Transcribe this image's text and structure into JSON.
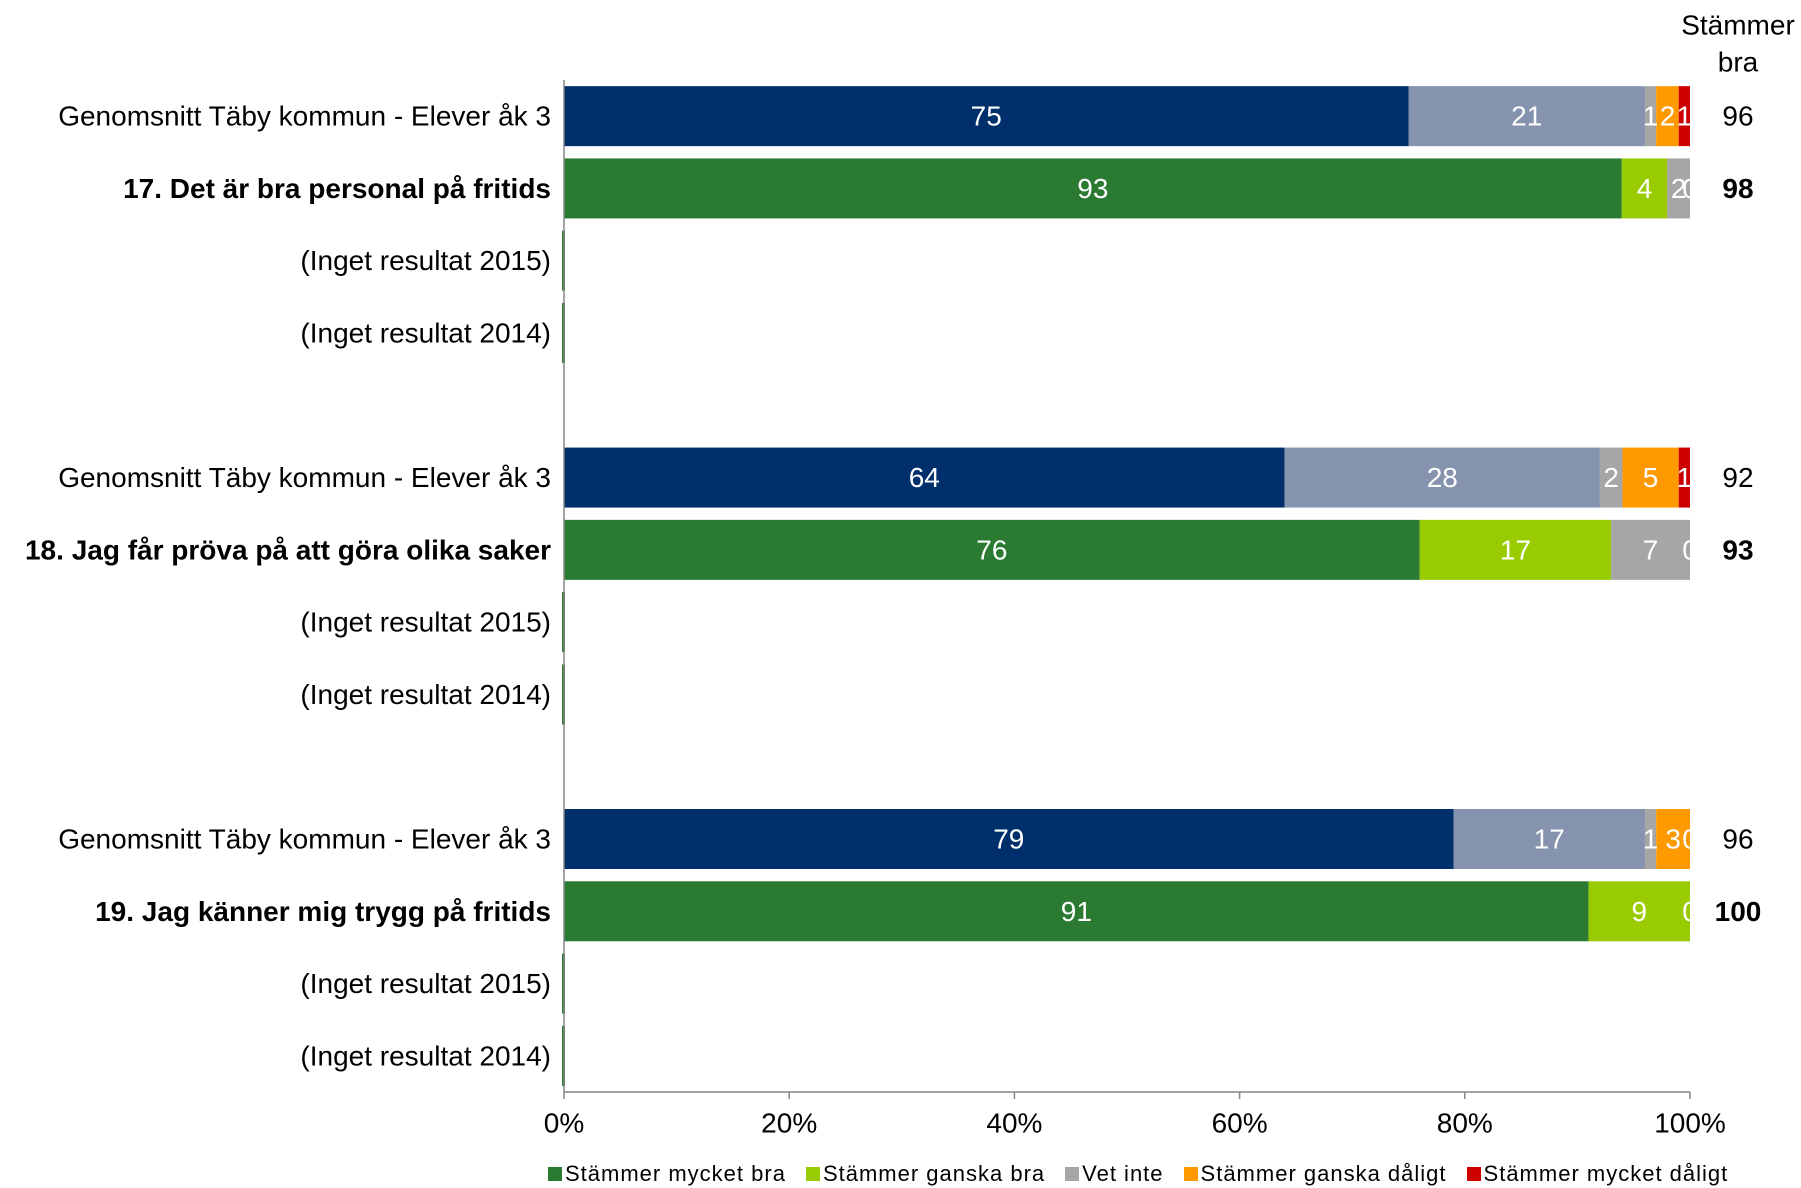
{
  "chart_data": {
    "type": "bar",
    "orientation": "horizontal",
    "stacking": "percent",
    "title": "",
    "xlabel": "",
    "ylabel": "",
    "xlim": [
      0,
      100
    ],
    "grid": false,
    "x_ticks": {
      "values": [
        0,
        20,
        40,
        60,
        80,
        100
      ],
      "labels": [
        "0%",
        "20%",
        "40%",
        "60%",
        "80%",
        "100%"
      ]
    },
    "total_column": {
      "title_lines": [
        "Stämmer",
        "bra"
      ]
    },
    "legend_position": "bottom",
    "series": [
      {
        "name": "Stämmer mycket bra",
        "color": "#2A7A31",
        "benchmark_color": "#00306B"
      },
      {
        "name": "Stämmer ganska bra",
        "color": "#99CC00",
        "benchmark_color": "#8593AE"
      },
      {
        "name": "Vet inte",
        "color": "#A6A6A6",
        "benchmark_color": "#A6A6A6"
      },
      {
        "name": "Stämmer ganska dåligt",
        "color": "#FF9900",
        "benchmark_color": "#FF9900"
      },
      {
        "name": "Stämmer mycket dåligt",
        "color": "#CC0000",
        "benchmark_color": "#CC0000"
      }
    ],
    "groups": [
      {
        "rows": [
          {
            "label": "Genomsnitt Täby kommun - Elever åk 3",
            "kind": "benchmark",
            "values": [
              75,
              21,
              1,
              2,
              1
            ],
            "total": 96
          },
          {
            "label": "17. Det är bra personal på fritids",
            "kind": "question",
            "values": [
              93,
              4,
              2,
              0,
              null
            ],
            "total": 98
          },
          {
            "label": "(Inget resultat 2015)",
            "kind": "no-result",
            "values": [],
            "total": null
          },
          {
            "label": "(Inget resultat 2014)",
            "kind": "no-result",
            "values": [],
            "total": null
          }
        ]
      },
      {
        "rows": [
          {
            "label": "Genomsnitt Täby kommun - Elever åk 3",
            "kind": "benchmark",
            "values": [
              64,
              28,
              2,
              5,
              1
            ],
            "total": 92
          },
          {
            "label": "18. Jag får pröva på att göra olika saker",
            "kind": "question",
            "values": [
              76,
              17,
              7,
              0,
              null
            ],
            "total": 93
          },
          {
            "label": "(Inget resultat 2015)",
            "kind": "no-result",
            "values": [],
            "total": null
          },
          {
            "label": "(Inget resultat 2014)",
            "kind": "no-result",
            "values": [],
            "total": null
          }
        ]
      },
      {
        "rows": [
          {
            "label": "Genomsnitt Täby kommun - Elever åk 3",
            "kind": "benchmark",
            "values": [
              79,
              17,
              1,
              3,
              0
            ],
            "total": 96
          },
          {
            "label": "19. Jag känner mig trygg på fritids",
            "kind": "question",
            "values": [
              91,
              9,
              0,
              null,
              null
            ],
            "total": 100
          },
          {
            "label": "(Inget resultat 2015)",
            "kind": "no-result",
            "values": [],
            "total": null
          },
          {
            "label": "(Inget resultat 2014)",
            "kind": "no-result",
            "values": [],
            "total": null
          }
        ]
      }
    ],
    "axis_color": "#868686"
  }
}
